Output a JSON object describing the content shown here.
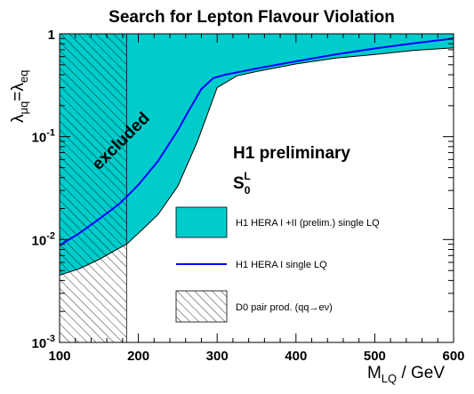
{
  "chart_data": {
    "type": "area",
    "title": "Search for Lepton Flavour Violation",
    "xlabel": {
      "main": "M",
      "sub": "LQ",
      "rest": " / GeV"
    },
    "ylabel": {
      "l1": "λ",
      "s1": "μq",
      "eq": "=λ",
      "s2": "eq"
    },
    "xlim": [
      100,
      600
    ],
    "ylim": [
      0.001,
      1
    ],
    "yscale": "log",
    "x_ticks": [
      "100",
      "200",
      "300",
      "400",
      "500",
      "600"
    ],
    "y_ticks": [
      {
        "value": 1,
        "base": "1",
        "exp": ""
      },
      {
        "value": 0.1,
        "base": "10",
        "exp": "-1"
      },
      {
        "value": 0.01,
        "base": "10",
        "exp": "-2"
      },
      {
        "value": 0.001,
        "base": "10",
        "exp": "-3"
      }
    ],
    "annotations": {
      "excluded": "excluded",
      "preliminary": "H1 preliminary",
      "model": {
        "base": "S",
        "sub": "0",
        "sup": "L"
      }
    },
    "colors": {
      "band": "#00cccc",
      "line": "#0000ff",
      "hatch": "#000000"
    },
    "series": [
      {
        "name": "H1 HERA I +II (prelim.) single LQ",
        "kind": "band",
        "x": [
          100,
          125,
          150,
          175,
          185,
          200,
          225,
          250,
          275,
          300,
          325,
          350,
          400,
          450,
          500,
          550,
          600
        ],
        "lower": [
          0.0045,
          0.0052,
          0.0064,
          0.0082,
          0.009,
          0.0115,
          0.0175,
          0.033,
          0.09,
          0.3,
          0.39,
          0.43,
          0.51,
          0.58,
          0.63,
          0.69,
          0.73
        ],
        "upper": [
          1,
          1,
          1,
          1,
          1,
          1,
          1,
          1,
          1,
          1,
          1,
          1,
          1,
          1,
          1,
          1,
          1
        ]
      },
      {
        "name": "H1 HERA I single LQ",
        "kind": "line",
        "x": [
          100,
          125,
          150,
          175,
          185,
          200,
          225,
          250,
          265,
          280,
          295,
          310,
          350,
          400,
          450,
          500,
          550,
          600
        ],
        "y": [
          0.0088,
          0.0115,
          0.0158,
          0.022,
          0.026,
          0.034,
          0.058,
          0.115,
          0.185,
          0.29,
          0.37,
          0.4,
          0.46,
          0.54,
          0.63,
          0.72,
          0.81,
          0.9
        ]
      },
      {
        "name": "D0 pair prod. (qq→eν)",
        "kind": "hatch",
        "x_range": [
          100,
          185
        ],
        "y_range": [
          0.001,
          1
        ]
      }
    ]
  }
}
